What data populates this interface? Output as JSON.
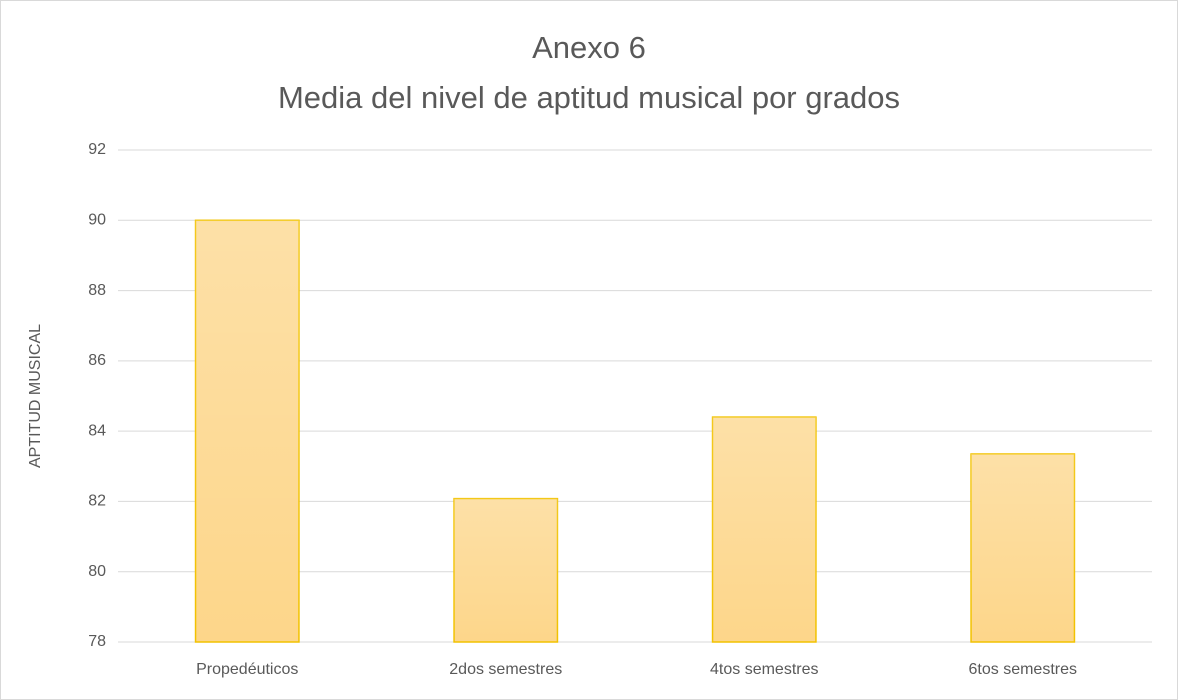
{
  "chart_data": {
    "type": "bar",
    "title": "Anexo 6",
    "subtitle": "Media del nivel de aptitud musical por grados",
    "y_label": "APTITUD MUSICAL",
    "categories": [
      "Propedéuticos",
      "2dos semestres",
      "4tos semestres",
      "6tos semestres"
    ],
    "values": [
      90,
      82.08,
      84.4,
      83.35
    ],
    "color": "#fdd68a",
    "edge_color": "#f2c200",
    "ylim": [
      78,
      92
    ],
    "yticks": [
      78,
      80,
      82,
      84,
      86,
      88,
      90,
      92
    ],
    "grid": true
  }
}
